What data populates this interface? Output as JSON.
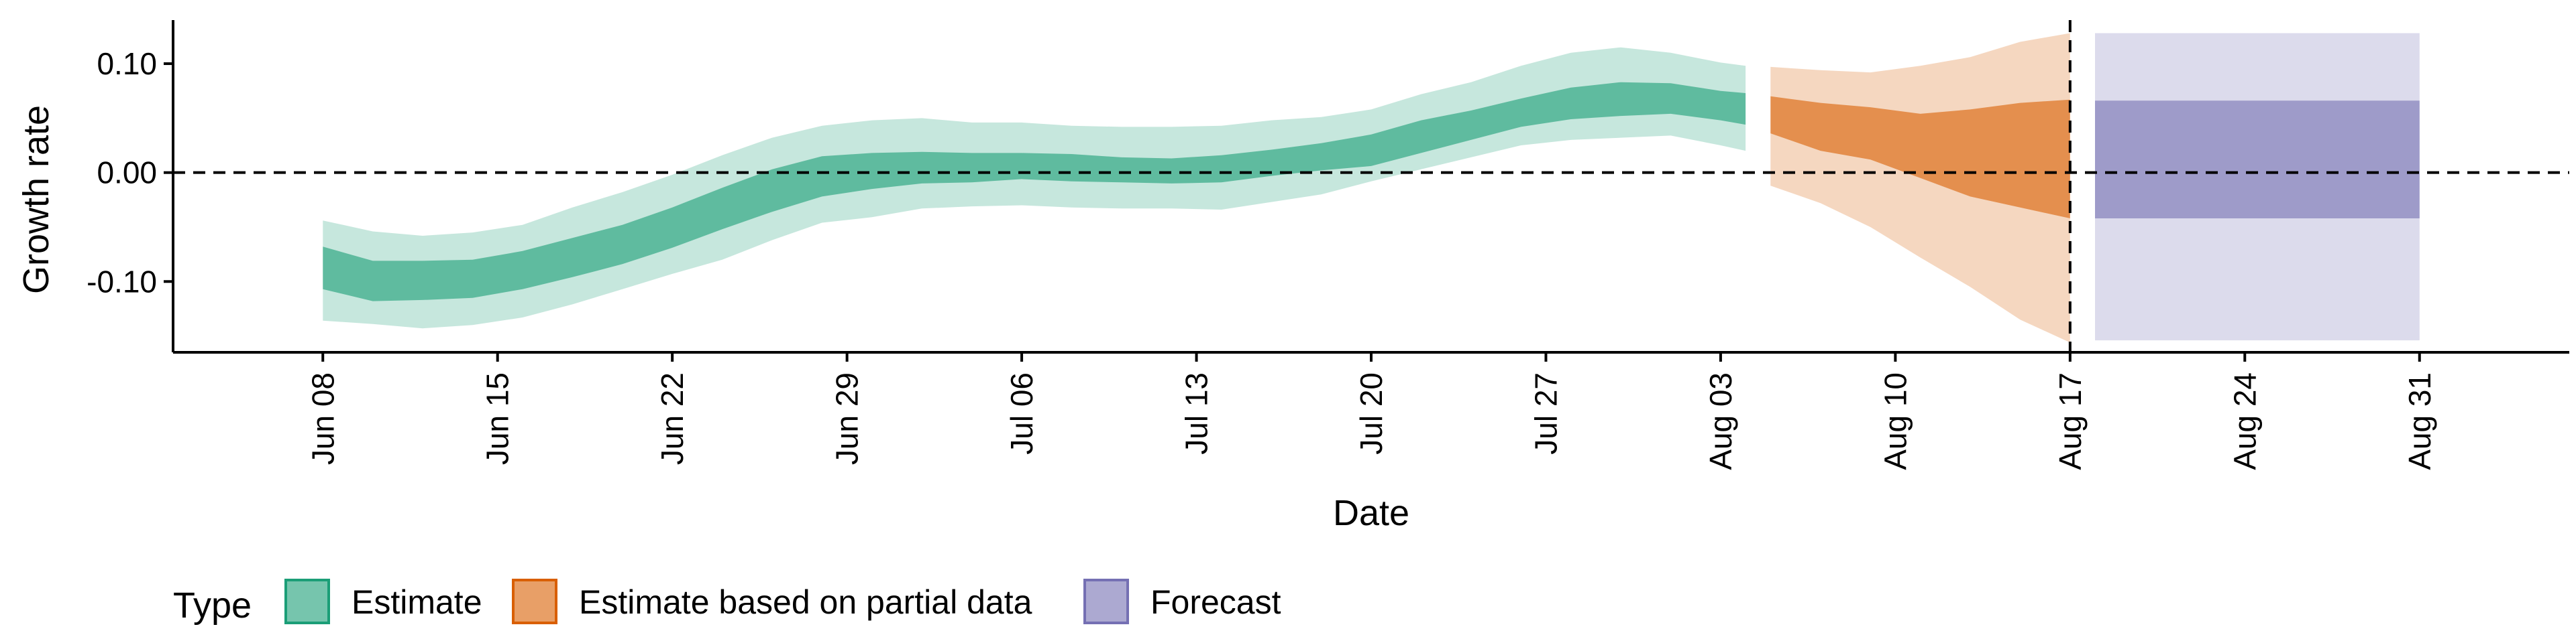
{
  "chart_data": {
    "type": "area",
    "xlabel": "Date",
    "ylabel": "Growth rate",
    "x_type": "date",
    "xlim": [
      "2020-06-02",
      "2020-09-06"
    ],
    "ylim": [
      -0.165,
      0.14
    ],
    "y_ticks": [
      0.1,
      0.0,
      -0.1
    ],
    "y_tick_labels": [
      "0.10",
      "0.00",
      "-0.10"
    ],
    "x_ticks": [
      "2020-06-08",
      "2020-06-15",
      "2020-06-22",
      "2020-06-29",
      "2020-07-06",
      "2020-07-13",
      "2020-07-20",
      "2020-07-27",
      "2020-08-03",
      "2020-08-10",
      "2020-08-17",
      "2020-08-24",
      "2020-08-31"
    ],
    "x_tick_labels": [
      "Jun 08",
      "Jun 15",
      "Jun 22",
      "Jun 29",
      "Jul 06",
      "Jul 13",
      "Jul 20",
      "Jul 27",
      "Aug 03",
      "Aug 10",
      "Aug 17",
      "Aug 24",
      "Aug 31"
    ],
    "hline": 0,
    "vline": "2020-08-17",
    "grid": false,
    "legend": {
      "title": "Type",
      "position": "bottom-left"
    },
    "series": [
      {
        "name": "Estimate",
        "color": "#1b9e77",
        "x": [
          "2020-06-08",
          "2020-06-10",
          "2020-06-12",
          "2020-06-14",
          "2020-06-16",
          "2020-06-18",
          "2020-06-20",
          "2020-06-22",
          "2020-06-24",
          "2020-06-26",
          "2020-06-28",
          "2020-06-30",
          "2020-07-02",
          "2020-07-04",
          "2020-07-06",
          "2020-07-08",
          "2020-07-10",
          "2020-07-12",
          "2020-07-14",
          "2020-07-16",
          "2020-07-18",
          "2020-07-20",
          "2020-07-22",
          "2020-07-24",
          "2020-07-26",
          "2020-07-28",
          "2020-07-30",
          "2020-08-01",
          "2020-08-03",
          "2020-08-04"
        ],
        "inner_lower": [
          -0.107,
          -0.118,
          -0.117,
          -0.115,
          -0.107,
          -0.096,
          -0.084,
          -0.069,
          -0.052,
          -0.036,
          -0.022,
          -0.015,
          -0.01,
          -0.009,
          -0.006,
          -0.008,
          -0.009,
          -0.01,
          -0.009,
          -0.003,
          0.002,
          0.006,
          0.018,
          0.03,
          0.042,
          0.049,
          0.052,
          0.054,
          0.048,
          0.044
        ],
        "inner_upper": [
          -0.068,
          -0.081,
          -0.081,
          -0.08,
          -0.072,
          -0.06,
          -0.048,
          -0.032,
          -0.014,
          0.003,
          0.015,
          0.018,
          0.019,
          0.018,
          0.018,
          0.017,
          0.014,
          0.013,
          0.016,
          0.021,
          0.027,
          0.035,
          0.048,
          0.057,
          0.068,
          0.078,
          0.083,
          0.082,
          0.075,
          0.073
        ],
        "outer_lower": [
          -0.136,
          -0.139,
          -0.143,
          -0.14,
          -0.133,
          -0.121,
          -0.107,
          -0.093,
          -0.08,
          -0.062,
          -0.046,
          -0.041,
          -0.033,
          -0.031,
          -0.03,
          -0.032,
          -0.033,
          -0.033,
          -0.034,
          -0.027,
          -0.02,
          -0.008,
          0.003,
          0.014,
          0.025,
          0.03,
          0.032,
          0.034,
          0.025,
          0.02
        ],
        "outer_upper": [
          -0.044,
          -0.054,
          -0.058,
          -0.055,
          -0.048,
          -0.032,
          -0.018,
          -0.002,
          0.016,
          0.032,
          0.043,
          0.048,
          0.05,
          0.046,
          0.046,
          0.043,
          0.042,
          0.042,
          0.043,
          0.048,
          0.051,
          0.058,
          0.072,
          0.083,
          0.098,
          0.11,
          0.115,
          0.11,
          0.101,
          0.098
        ]
      },
      {
        "name": "Estimate based on partial data",
        "color": "#d95f02",
        "x": [
          "2020-08-05",
          "2020-08-07",
          "2020-08-09",
          "2020-08-11",
          "2020-08-13",
          "2020-08-15",
          "2020-08-17"
        ],
        "inner_lower": [
          0.036,
          0.02,
          0.012,
          -0.005,
          -0.022,
          -0.032,
          -0.042
        ],
        "inner_upper": [
          0.07,
          0.064,
          0.06,
          0.054,
          0.058,
          0.064,
          0.067
        ],
        "outer_lower": [
          -0.012,
          -0.028,
          -0.05,
          -0.078,
          -0.105,
          -0.135,
          -0.156
        ],
        "outer_upper": [
          0.097,
          0.094,
          0.092,
          0.098,
          0.106,
          0.12,
          0.128
        ]
      },
      {
        "name": "Forecast",
        "color": "#7570b3",
        "x": [
          "2020-08-18",
          "2020-08-31"
        ],
        "inner_lower": [
          -0.042,
          -0.042
        ],
        "inner_upper": [
          0.066,
          0.066
        ],
        "outer_lower": [
          -0.154,
          -0.154
        ],
        "outer_upper": [
          0.128,
          0.128
        ]
      }
    ]
  }
}
